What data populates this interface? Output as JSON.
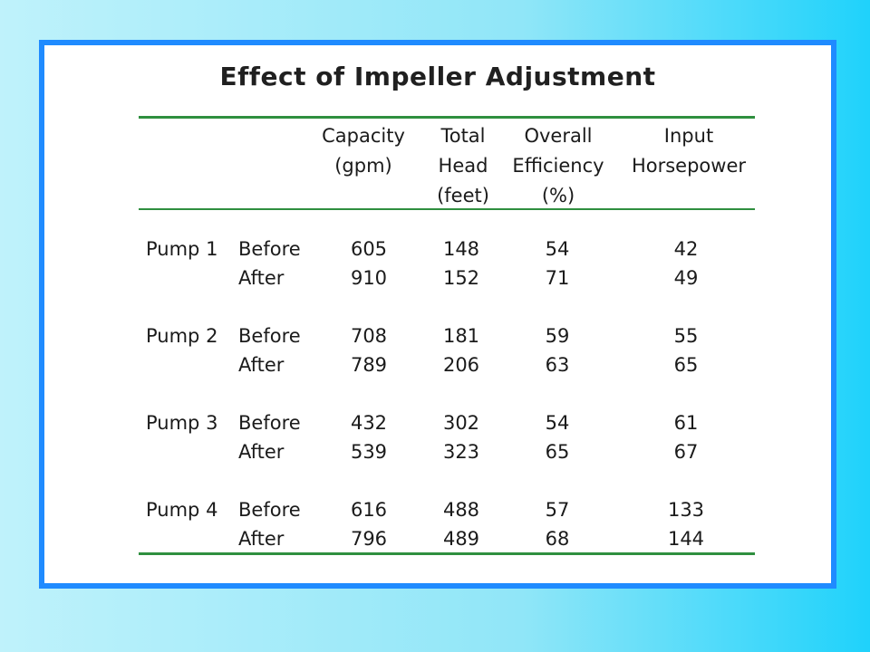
{
  "title": "Effect of Impeller Adjustment",
  "headers": {
    "capacity": [
      "Capacity",
      "(gpm)"
    ],
    "head": [
      "Total",
      "Head",
      "(feet)"
    ],
    "efficiency": [
      "Overall",
      "Efficiency",
      "(%)"
    ],
    "horsepower": [
      "Input",
      "Horsepower"
    ]
  },
  "rows": [
    {
      "pump": "Pump 1",
      "state": "Before",
      "capacity": "605",
      "head": "148",
      "efficiency": "54",
      "horsepower": "42"
    },
    {
      "pump": "",
      "state": "After",
      "capacity": "910",
      "head": "152",
      "efficiency": "71",
      "horsepower": "49"
    },
    {
      "pump": "Pump 2",
      "state": "Before",
      "capacity": "708",
      "head": "181",
      "efficiency": "59",
      "horsepower": "55"
    },
    {
      "pump": "",
      "state": "After",
      "capacity": "789",
      "head": "206",
      "efficiency": "63",
      "horsepower": "65"
    },
    {
      "pump": "Pump 3",
      "state": "Before",
      "capacity": "432",
      "head": "302",
      "efficiency": "54",
      "horsepower": "61"
    },
    {
      "pump": "",
      "state": "After",
      "capacity": "539",
      "head": "323",
      "efficiency": "65",
      "horsepower": "67"
    },
    {
      "pump": "Pump 4",
      "state": "Before",
      "capacity": "616",
      "head": "488",
      "efficiency": "57",
      "horsepower": "133"
    },
    {
      "pump": "",
      "state": "After",
      "capacity": "796",
      "head": "489",
      "efficiency": "68",
      "horsepower": "144"
    }
  ],
  "colors": {
    "frame": "#1f8bff",
    "rule": "#2f8f3f",
    "background_light": "#bff2fb",
    "background_dark": "#1fd2fb"
  }
}
